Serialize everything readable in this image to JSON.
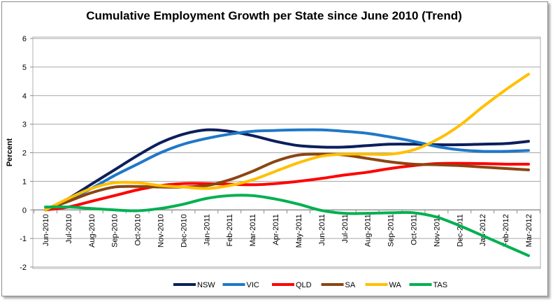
{
  "chart_data": {
    "type": "line",
    "title": "Cumulative Employment Growth per State since June 2010 (Trend)",
    "xlabel": "",
    "ylabel": "Percent",
    "ylim": [
      -2,
      6
    ],
    "yticks": [
      "6",
      "5",
      "4",
      "3",
      "2",
      "1",
      "0",
      "-1",
      "-2"
    ],
    "grid": true,
    "legend_position": "bottom",
    "categories": [
      "Jun-2010",
      "Jul-2010",
      "Aug-2010",
      "Sep-2010",
      "Oct-2010",
      "Nov-2010",
      "Dec-2010",
      "Jan-2011",
      "Feb-2011",
      "Mar-2011",
      "Apr-2011",
      "May-2011",
      "Jun-2011",
      "Jul-2011",
      "Aug-2011",
      "Sep-2011",
      "Oct-2011",
      "Nov-2011",
      "Dec-2011",
      "Jan-2012",
      "Feb-2012",
      "Mar-2012"
    ],
    "series": [
      {
        "name": "NSW",
        "color": "#0c1f5c",
        "values": [
          0,
          0.4,
          0.9,
          1.4,
          1.9,
          2.35,
          2.65,
          2.8,
          2.75,
          2.6,
          2.4,
          2.25,
          2.2,
          2.2,
          2.25,
          2.3,
          2.3,
          2.28,
          2.28,
          2.3,
          2.32,
          2.4
        ]
      },
      {
        "name": "VIC",
        "color": "#1f78c8",
        "values": [
          0,
          0.35,
          0.75,
          1.2,
          1.6,
          2.0,
          2.3,
          2.5,
          2.65,
          2.75,
          2.78,
          2.8,
          2.8,
          2.75,
          2.68,
          2.55,
          2.4,
          2.22,
          2.1,
          2.05,
          2.05,
          2.08
        ]
      },
      {
        "name": "QLD",
        "color": "#ff0000",
        "values": [
          0,
          0.1,
          0.3,
          0.5,
          0.7,
          0.85,
          0.92,
          0.92,
          0.9,
          0.88,
          0.92,
          1.0,
          1.1,
          1.22,
          1.32,
          1.45,
          1.55,
          1.62,
          1.63,
          1.62,
          1.6,
          1.6
        ]
      },
      {
        "name": "SA",
        "color": "#8b4513",
        "values": [
          0,
          0.3,
          0.6,
          0.8,
          0.82,
          0.8,
          0.8,
          0.85,
          1.05,
          1.35,
          1.7,
          1.92,
          1.95,
          1.92,
          1.8,
          1.68,
          1.6,
          1.58,
          1.55,
          1.5,
          1.45,
          1.4
        ]
      },
      {
        "name": "WA",
        "color": "#ffc000",
        "values": [
          0,
          0.4,
          0.75,
          0.95,
          0.95,
          0.85,
          0.8,
          0.75,
          0.85,
          1.05,
          1.35,
          1.65,
          1.88,
          1.95,
          1.95,
          1.95,
          2.1,
          2.45,
          2.95,
          3.6,
          4.2,
          4.75
        ]
      },
      {
        "name": "TAS",
        "color": "#00b050",
        "values": [
          0.1,
          0.1,
          0.05,
          0,
          -0.03,
          0.05,
          0.2,
          0.4,
          0.5,
          0.5,
          0.38,
          0.2,
          -0.02,
          -0.12,
          -0.12,
          -0.1,
          -0.1,
          -0.25,
          -0.55,
          -0.9,
          -1.25,
          -1.6
        ]
      }
    ]
  }
}
